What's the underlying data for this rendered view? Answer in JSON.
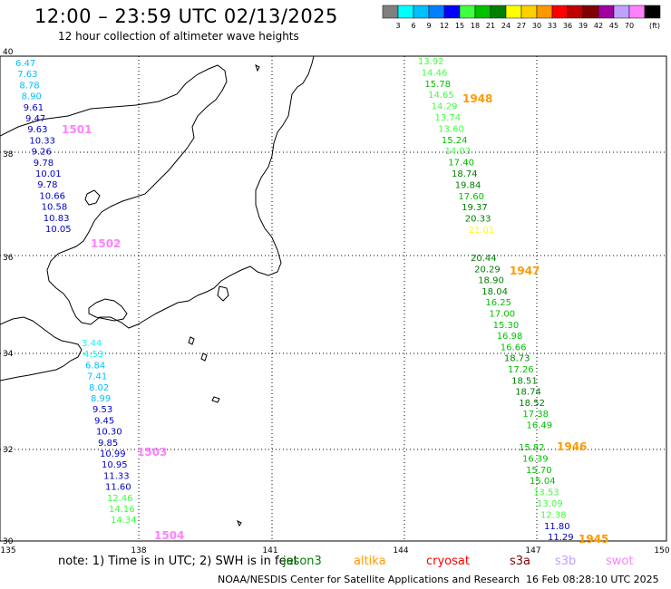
{
  "header": {
    "title": "12:00 – 23:59 UTC 02/13/2025",
    "subtitle": "12 hour collection of altimeter wave heights"
  },
  "legend": {
    "unit": "(ft)",
    "levels": [
      {
        "label": "",
        "color": "#808080"
      },
      {
        "label": "3",
        "color": "#00ffff"
      },
      {
        "label": "6",
        "color": "#00bfff"
      },
      {
        "label": "9",
        "color": "#0080ff"
      },
      {
        "label": "12",
        "color": "#0000ff"
      },
      {
        "label": "15",
        "color": "#40ff40"
      },
      {
        "label": "18",
        "color": "#00c000"
      },
      {
        "label": "21",
        "color": "#008000"
      },
      {
        "label": "24",
        "color": "#ffff00"
      },
      {
        "label": "27",
        "color": "#ffd000"
      },
      {
        "label": "30",
        "color": "#ff9900"
      },
      {
        "label": "33",
        "color": "#ff0000"
      },
      {
        "label": "36",
        "color": "#c00000"
      },
      {
        "label": "39",
        "color": "#800000"
      },
      {
        "label": "42",
        "color": "#a000a0"
      },
      {
        "label": "45",
        "color": "#c0a0ff"
      },
      {
        "label": "70",
        "color": "#ff80ff"
      },
      {
        "label": "",
        "color": "#000000"
      }
    ]
  },
  "axes": {
    "lat_labels": [
      "40",
      "38",
      "36",
      "34",
      "32",
      "30"
    ],
    "lon_labels": [
      "135",
      "138",
      "141",
      "144",
      "147",
      "150"
    ]
  },
  "tracks": [
    {
      "time": "1501",
      "time_color": "#ff80ff",
      "values": [
        {
          "v": "6.47",
          "c": "#00bfff"
        },
        {
          "v": "7.63",
          "c": "#00bfff"
        },
        {
          "v": "8.78",
          "c": "#00bfff"
        },
        {
          "v": "8.90",
          "c": "#00bfff"
        },
        {
          "v": "9.61",
          "c": "#0000c8"
        },
        {
          "v": "9.47",
          "c": "#0000c8"
        },
        {
          "v": "9.63",
          "c": "#0000c8"
        },
        {
          "v": "10.33",
          "c": "#0000c8"
        },
        {
          "v": "9.26",
          "c": "#0000c8"
        },
        {
          "v": "9.78",
          "c": "#0000c8"
        },
        {
          "v": "10.01",
          "c": "#0000c8"
        },
        {
          "v": "9.78",
          "c": "#0000c8"
        },
        {
          "v": "10.66",
          "c": "#0000c8"
        },
        {
          "v": "10.58",
          "c": "#0000c8"
        },
        {
          "v": "10.83",
          "c": "#0000c8"
        },
        {
          "v": "10.05",
          "c": "#0000c8"
        }
      ]
    },
    {
      "time": "1502",
      "time_color": "#ff80ff"
    },
    {
      "time": "1503",
      "time_color": "#ff80ff",
      "values": [
        {
          "v": "3.44",
          "c": "#00ffff"
        },
        {
          "v": "4.53",
          "c": "#00ffff"
        },
        {
          "v": "6.84",
          "c": "#00bfff"
        },
        {
          "v": "7.41",
          "c": "#00bfff"
        },
        {
          "v": "8.02",
          "c": "#00bfff"
        },
        {
          "v": "8.99",
          "c": "#00bfff"
        },
        {
          "v": "9.53",
          "c": "#0000c8"
        },
        {
          "v": "9.45",
          "c": "#0000c8"
        },
        {
          "v": "10.30",
          "c": "#0000c8"
        },
        {
          "v": "9.85",
          "c": "#0000c8"
        },
        {
          "v": "10.99",
          "c": "#0000c8"
        },
        {
          "v": "10.95",
          "c": "#0000c8"
        },
        {
          "v": "11.33",
          "c": "#0000c8"
        },
        {
          "v": "11.60",
          "c": "#0000c8"
        },
        {
          "v": "12.46",
          "c": "#40ff40"
        },
        {
          "v": "14.16",
          "c": "#40ff40"
        },
        {
          "v": "14.34",
          "c": "#40ff40"
        }
      ]
    },
    {
      "time": "1504",
      "time_color": "#ff80ff"
    },
    {
      "time": "1948",
      "time_color": "#ff9900",
      "values": [
        {
          "v": "13.92",
          "c": "#40ff40"
        },
        {
          "v": "14.46",
          "c": "#40ff40"
        },
        {
          "v": "15.78",
          "c": "#00c000"
        },
        {
          "v": "14.65",
          "c": "#40ff40"
        },
        {
          "v": "14.29",
          "c": "#40ff40"
        },
        {
          "v": "13.74",
          "c": "#40ff40"
        },
        {
          "v": "13.60",
          "c": "#40ff40"
        },
        {
          "v": "15.24",
          "c": "#00c000"
        },
        {
          "v": "14.03",
          "c": "#40ff40"
        },
        {
          "v": "17.40",
          "c": "#00c000"
        },
        {
          "v": "18.74",
          "c": "#008000"
        },
        {
          "v": "19.84",
          "c": "#008000"
        },
        {
          "v": "17.60",
          "c": "#00c000"
        },
        {
          "v": "19.37",
          "c": "#008000"
        },
        {
          "v": "20.33",
          "c": "#008000"
        },
        {
          "v": "21.01",
          "c": "#ffff00"
        }
      ]
    },
    {
      "time": "1947",
      "time_color": "#ff9900",
      "values": [
        {
          "v": "20.44",
          "c": "#008000"
        },
        {
          "v": "20.29",
          "c": "#008000"
        },
        {
          "v": "18.90",
          "c": "#008000"
        },
        {
          "v": "18.04",
          "c": "#008000"
        },
        {
          "v": "16.25",
          "c": "#00c000"
        },
        {
          "v": "17.00",
          "c": "#00c000"
        },
        {
          "v": "15.30",
          "c": "#00c000"
        },
        {
          "v": "16.98",
          "c": "#00c000"
        },
        {
          "v": "16.66",
          "c": "#00c000"
        },
        {
          "v": "18.73",
          "c": "#008000"
        },
        {
          "v": "17.26",
          "c": "#00c000"
        },
        {
          "v": "18.51",
          "c": "#008000"
        },
        {
          "v": "18.74",
          "c": "#008000"
        },
        {
          "v": "18.52",
          "c": "#008000"
        },
        {
          "v": "17.38",
          "c": "#00c000"
        },
        {
          "v": "16.49",
          "c": "#00c000"
        }
      ]
    },
    {
      "time": "1946",
      "time_color": "#ff9900",
      "values": [
        {
          "v": "15.82",
          "c": "#00c000"
        },
        {
          "v": "16.39",
          "c": "#00c000"
        },
        {
          "v": "15.70",
          "c": "#00c000"
        },
        {
          "v": "15.04",
          "c": "#00c000"
        },
        {
          "v": "13.53",
          "c": "#40ff40"
        },
        {
          "v": "13.09",
          "c": "#40ff40"
        },
        {
          "v": "12.38",
          "c": "#40ff40"
        },
        {
          "v": "11.80",
          "c": "#0000c8"
        },
        {
          "v": "11.29",
          "c": "#0000c8"
        }
      ]
    },
    {
      "time": "1945",
      "time_color": "#ff9900"
    }
  ],
  "footer": {
    "note": "note: 1) Time is in UTC; 2) SWH is in feet",
    "missions": [
      {
        "name": "jason3",
        "color": "#008000"
      },
      {
        "name": "altika",
        "color": "#ff9900"
      },
      {
        "name": "cryosat",
        "color": "#ff0000"
      },
      {
        "name": "s3a",
        "color": "#800000"
      },
      {
        "name": "s3b",
        "color": "#c0a0ff"
      },
      {
        "name": "swot",
        "color": "#ff80ff"
      }
    ],
    "credit": "NOAA/NESDIS Center for Satellite Applications and Research",
    "timestamp": "16 Feb 08:28:10 UTC 2025"
  }
}
